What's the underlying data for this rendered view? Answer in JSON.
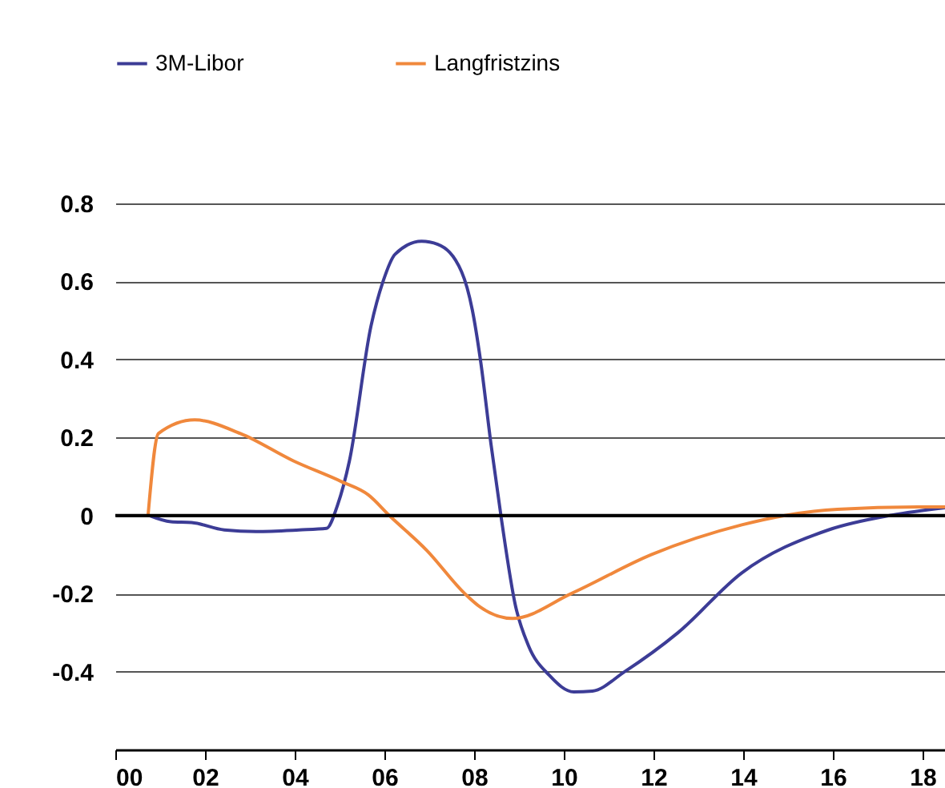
{
  "chart_data": {
    "type": "line",
    "xlim": [
      0,
      18.5
    ],
    "ylim": [
      -0.6,
      0.8
    ],
    "xticks": [
      {
        "value": 0,
        "label": "00"
      },
      {
        "value": 2,
        "label": "02"
      },
      {
        "value": 4,
        "label": "04"
      },
      {
        "value": 6,
        "label": "06"
      },
      {
        "value": 8,
        "label": "08"
      },
      {
        "value": 10,
        "label": "10"
      },
      {
        "value": 12,
        "label": "12"
      },
      {
        "value": 14,
        "label": "14"
      },
      {
        "value": 16,
        "label": "16"
      },
      {
        "value": 18,
        "label": "18"
      }
    ],
    "yticks": [
      -0.4,
      -0.2,
      0,
      0.2,
      0.4,
      0.6,
      0.8
    ],
    "grid": "y",
    "legend": "top left",
    "ref_lines": [
      {
        "axis": "y",
        "value": 0,
        "color": "#000000"
      }
    ],
    "series": [
      {
        "name": "3M-Libor",
        "color": "#3c3c96",
        "x": [
          0.75,
          1.24,
          1.7,
          2.43,
          3.14,
          4.1,
          4.71,
          4.95,
          5.22,
          5.7,
          5.97,
          6.24,
          6.83,
          7.19,
          7.72,
          7.96,
          8.14,
          8.38,
          8.61,
          8.92,
          9.21,
          9.68,
          10.22,
          10.64,
          11.36,
          12.55,
          13.97,
          15.9,
          17.32,
          18.5
        ],
        "values": [
          0,
          -0.016,
          -0.018,
          -0.037,
          -0.041,
          -0.037,
          -0.033,
          0.025,
          0.14,
          0.485,
          0.6,
          0.67,
          0.703,
          0.695,
          0.625,
          0.527,
          0.4,
          0.18,
          -0.01,
          -0.23,
          -0.333,
          -0.41,
          -0.452,
          -0.45,
          -0.4,
          -0.3,
          -0.147,
          -0.037,
          0.001,
          0.02
        ]
      },
      {
        "name": "Langfristzins",
        "color": "#f0883c",
        "x": [
          0.73,
          0.96,
          1.77,
          2.79,
          3.97,
          5.04,
          5.64,
          6.11,
          6.95,
          7.79,
          8.14,
          8.86,
          10.17,
          11.96,
          13.97,
          14.93,
          16.1,
          17.9,
          18.5
        ],
        "values": [
          0,
          0.21,
          0.245,
          0.21,
          0.14,
          0.087,
          0.053,
          0,
          -0.09,
          -0.2,
          -0.235,
          -0.264,
          -0.2,
          -0.1,
          -0.024,
          0,
          0.016,
          0.022,
          0.022
        ]
      }
    ]
  }
}
